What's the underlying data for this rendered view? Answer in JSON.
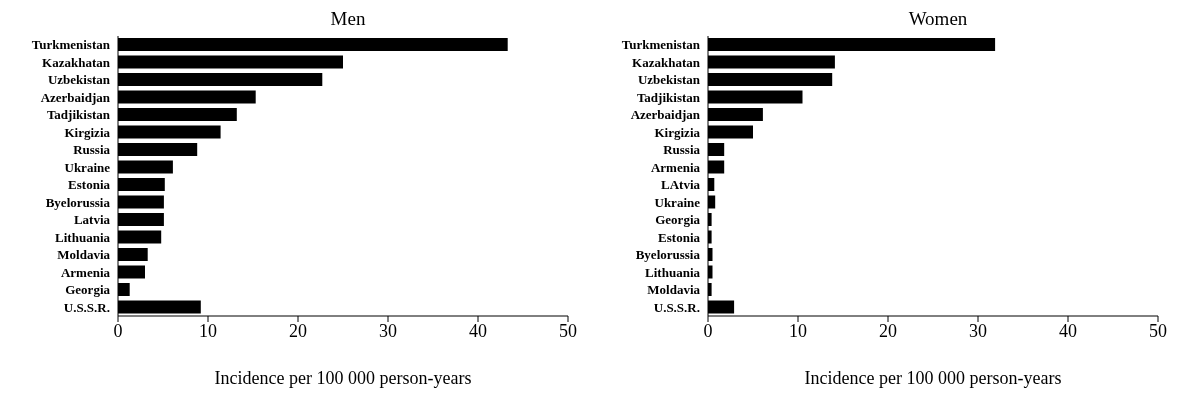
{
  "chart_data": [
    {
      "type": "bar",
      "orientation": "horizontal",
      "title": "Men",
      "xlabel": "Incidence per 100 000 person-years",
      "categories": [
        "Turkmenistan",
        "Kazakhatan",
        "Uzbekistan",
        "Azerbaidjan",
        "Tadjikistan",
        "Kirgizia",
        "Russia",
        "Ukraine",
        "Estonia",
        "Byelorussia",
        "Latvia",
        "Lithuania",
        "Moldavia",
        "Armenia",
        "Georgia",
        "U.S.S.R."
      ],
      "values": [
        43.3,
        25.0,
        22.7,
        15.3,
        13.2,
        11.4,
        8.8,
        6.1,
        5.2,
        5.1,
        5.1,
        4.8,
        3.3,
        3.0,
        1.3,
        9.2
      ],
      "color": "#000000",
      "xlim": [
        0,
        50
      ],
      "xticks": [
        0,
        10,
        20,
        30,
        40,
        50
      ],
      "grid": false,
      "legend": false
    },
    {
      "type": "bar",
      "orientation": "horizontal",
      "title": "Women",
      "xlabel": "Incidence per 100 000 person-years",
      "categories": [
        "Turkmenistan",
        "Kazakhatan",
        "Uzbekistan",
        "Tadjikistan",
        "Azerbaidjan",
        "Kirgizia",
        "Russia",
        "Armenia",
        "LAtvia",
        "Ukraine",
        "Georgia",
        "Estonia",
        "Byelorussia",
        "Lithuania",
        "Moldavia",
        "U.S.S.R."
      ],
      "values": [
        31.9,
        14.1,
        13.8,
        10.5,
        6.1,
        5.0,
        1.8,
        1.8,
        0.7,
        0.8,
        0.4,
        0.4,
        0.5,
        0.5,
        0.4,
        2.9
      ],
      "color": "#000000",
      "xlim": [
        0,
        50
      ],
      "xticks": [
        0,
        10,
        20,
        30,
        40,
        50
      ],
      "grid": false,
      "legend": false
    }
  ]
}
